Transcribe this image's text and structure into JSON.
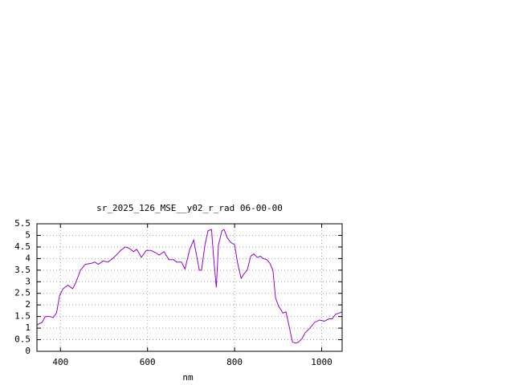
{
  "chart_data": {
    "type": "line",
    "title": "sr_2025_126_MSE__y02_r_rad 06-00-00",
    "x_label": "nm",
    "x": [
      347,
      358,
      365,
      376,
      383,
      391,
      398,
      406,
      417,
      428,
      435,
      446,
      457,
      472,
      479,
      487,
      498,
      509,
      520,
      531,
      538,
      549,
      557,
      568,
      575,
      586,
      597,
      608,
      619,
      627,
      638,
      649,
      660,
      667,
      678,
      686,
      697,
      706,
      713,
      719,
      724,
      732,
      739,
      747,
      752,
      758,
      763,
      771,
      776,
      783,
      791,
      800,
      807,
      815,
      822,
      829,
      837,
      844,
      852,
      859,
      866,
      874,
      881,
      888,
      894,
      901,
      911,
      918,
      925,
      933,
      940,
      947,
      955,
      962,
      973,
      984,
      995,
      1006,
      1017,
      1024,
      1032,
      1040,
      1047
    ],
    "series": [
      {
        "color": "#9400d3",
        "values": [
          1.15,
          1.25,
          1.5,
          1.5,
          1.45,
          1.65,
          2.4,
          2.7,
          2.85,
          2.7,
          2.95,
          3.5,
          3.75,
          3.8,
          3.85,
          3.75,
          3.9,
          3.85,
          4.0,
          4.2,
          4.35,
          4.5,
          4.45,
          4.3,
          4.4,
          4.05,
          4.35,
          4.35,
          4.25,
          4.15,
          4.3,
          3.95,
          3.95,
          3.85,
          3.85,
          3.55,
          4.4,
          4.8,
          4.1,
          3.5,
          3.5,
          4.6,
          5.2,
          5.25,
          4.0,
          2.75,
          4.6,
          5.2,
          5.25,
          4.9,
          4.7,
          4.6,
          3.8,
          3.15,
          3.35,
          3.5,
          4.1,
          4.2,
          4.05,
          4.1,
          4.0,
          3.95,
          3.8,
          3.5,
          2.3,
          1.95,
          1.65,
          1.7,
          1.1,
          0.4,
          0.35,
          0.4,
          0.55,
          0.8,
          1.0,
          1.25,
          1.35,
          1.3,
          1.4,
          1.4,
          1.6,
          1.65,
          1.7
        ]
      }
    ],
    "xlim": [
      346,
      1047
    ],
    "xticks": [
      400,
      600,
      800,
      1000
    ],
    "ylim": [
      0,
      5.5
    ],
    "yticks": [
      0,
      0.5,
      1,
      1.5,
      2,
      2.5,
      3,
      3.5,
      4,
      4.5,
      5,
      5.5
    ],
    "grid": true
  }
}
